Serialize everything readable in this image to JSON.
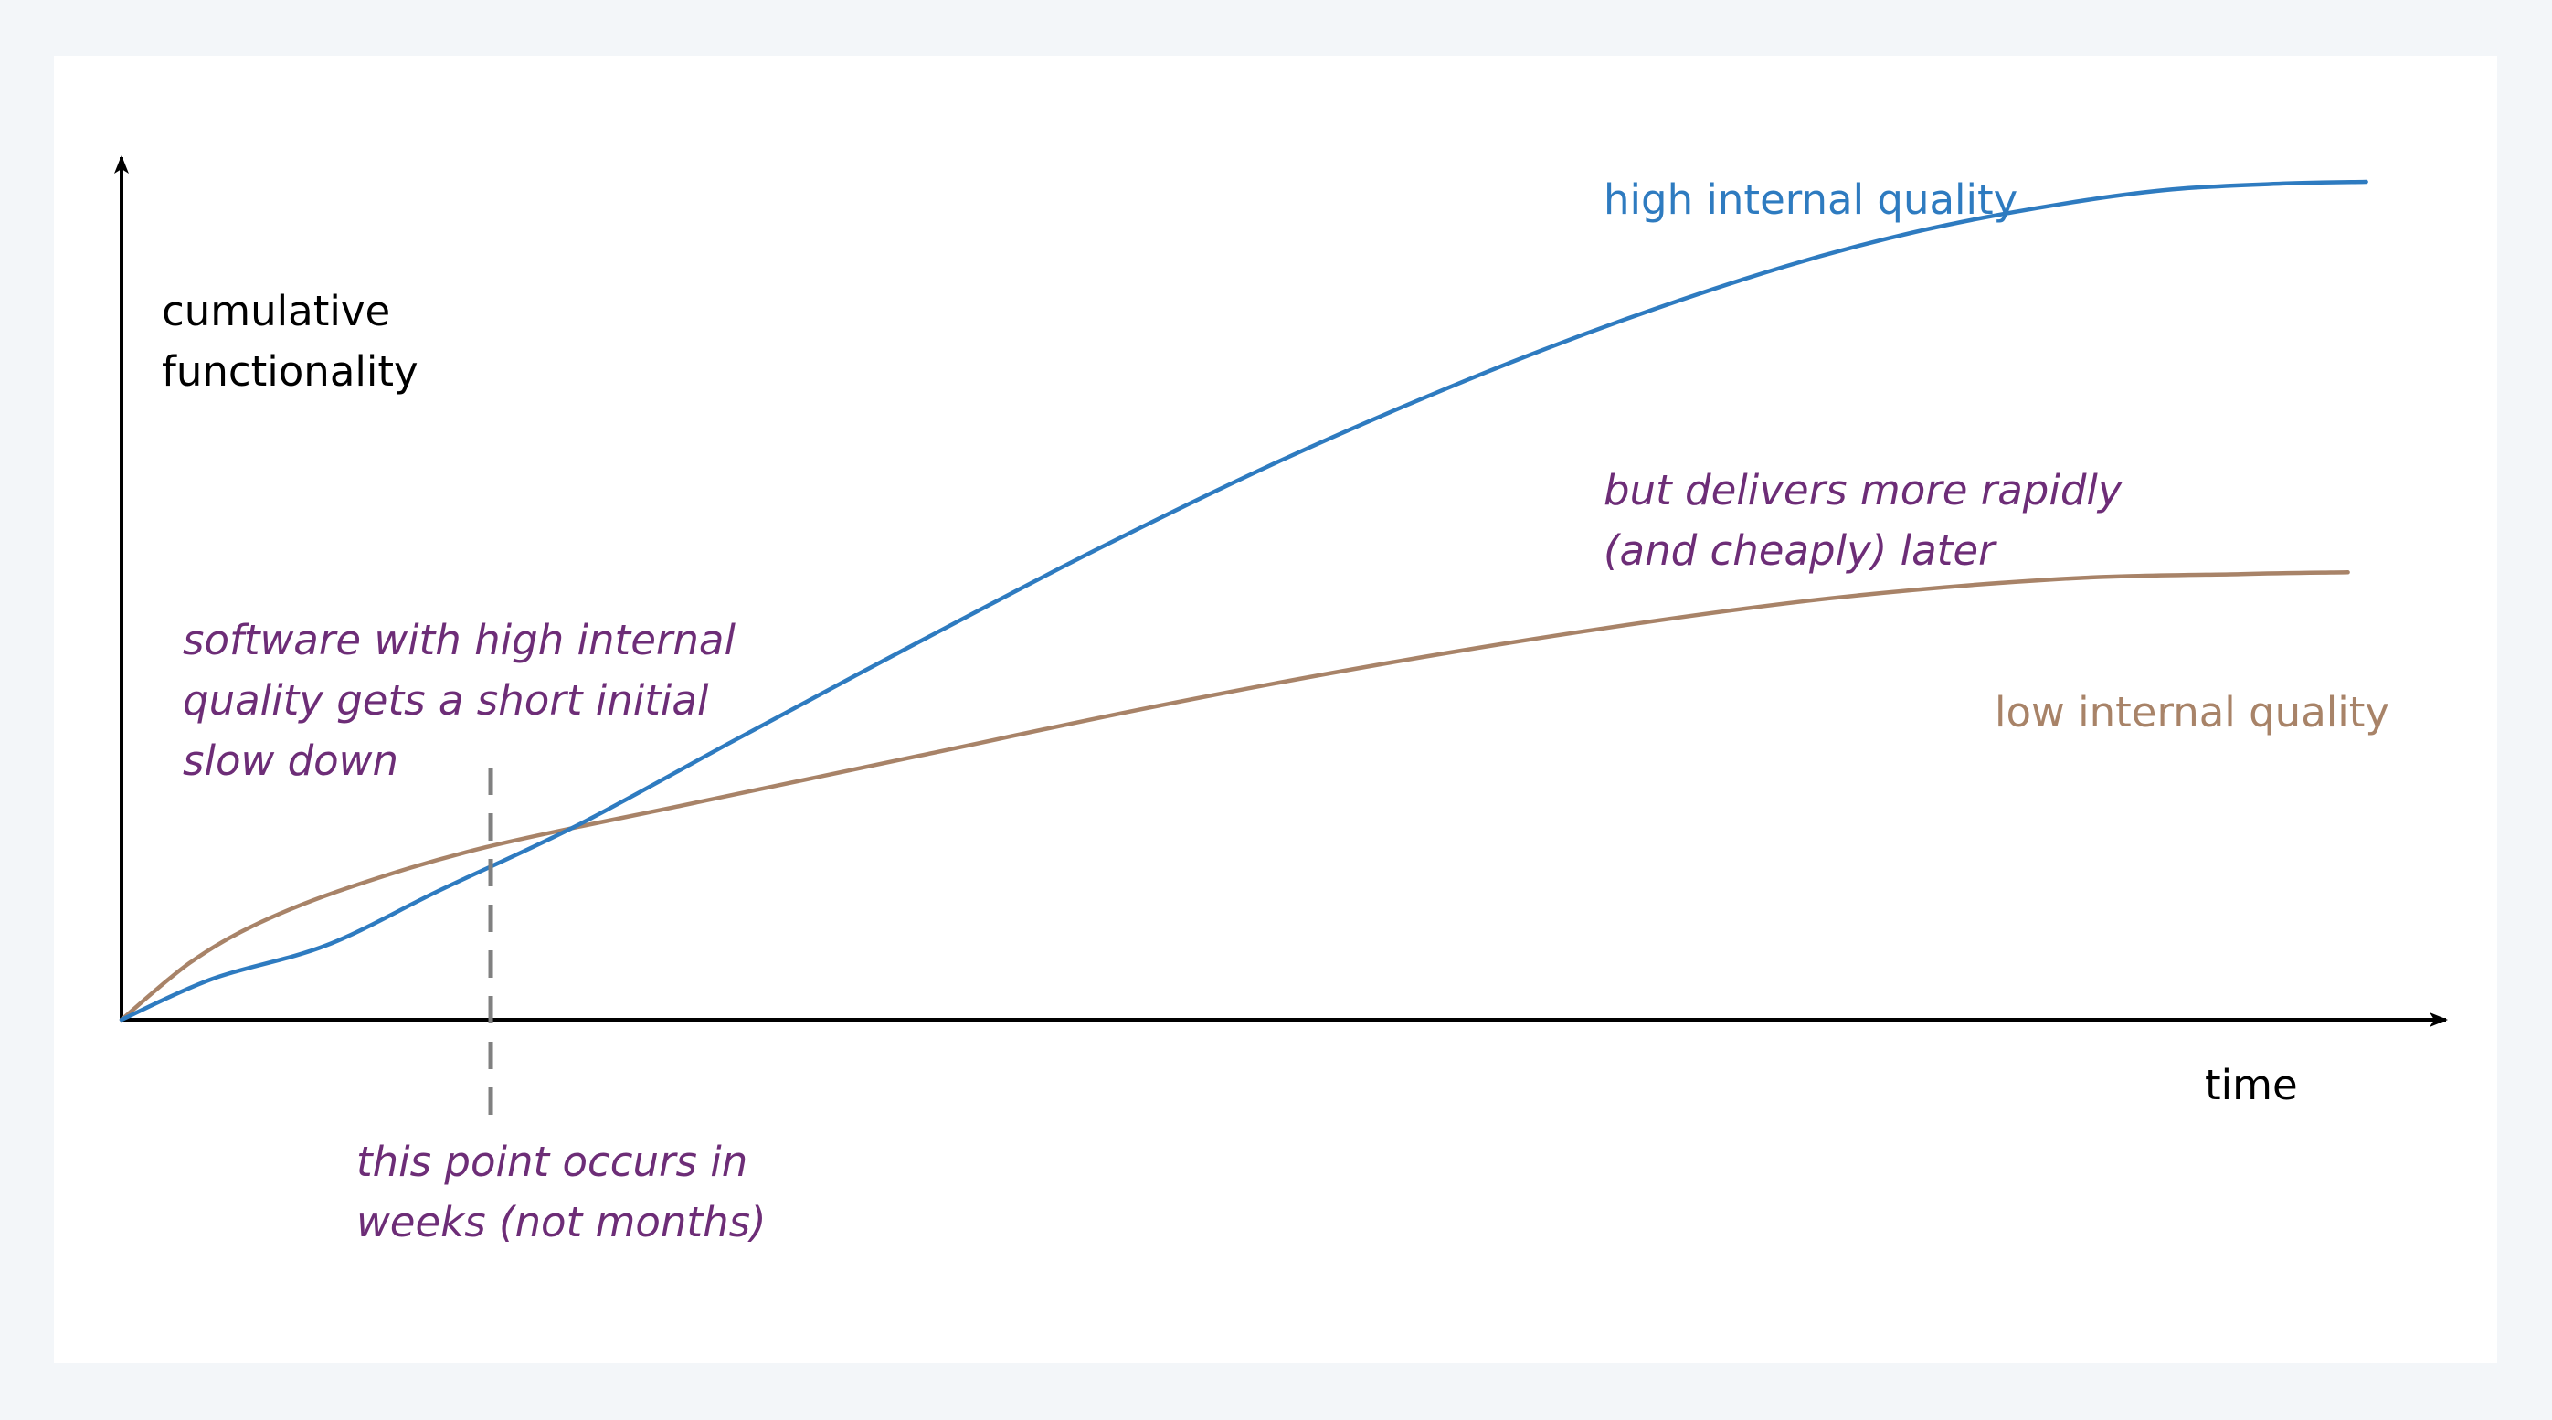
{
  "chart_data": {
    "type": "line",
    "title": "",
    "xlabel": "time",
    "ylabel_lines": [
      "cumulative",
      "functionality"
    ],
    "axis_ticks": false,
    "grid": false,
    "xlim": [
      0,
      100
    ],
    "ylim": [
      0,
      100
    ],
    "series": [
      {
        "name": "high internal quality",
        "color": "#2e7bc0",
        "x": [
          0,
          4,
          9,
          14,
          20,
          27,
          35,
          43,
          51,
          59,
          66,
          73,
          79,
          85,
          90,
          95,
          98.5
        ],
        "y": [
          0,
          4.9,
          8.9,
          15.5,
          23.2,
          33.5,
          45.1,
          56.4,
          66.9,
          76.3,
          83.6,
          89.9,
          94.2,
          97.3,
          99.1,
          99.8,
          100
        ]
      },
      {
        "name": "low internal quality",
        "color": "#a88368",
        "x": [
          0,
          3,
          6,
          10,
          16,
          25,
          35,
          45,
          55,
          65,
          75,
          85,
          93,
          97.7
        ],
        "y": [
          0,
          6.8,
          11.5,
          15.8,
          20.6,
          25.8,
          31.5,
          37.2,
          42.3,
          46.7,
          50.3,
          52.6,
          53.2,
          53.4
        ]
      }
    ],
    "annotations": [
      {
        "key": "crossover",
        "lines": [
          "software with high internal",
          "quality gets a short initial",
          "slow down"
        ]
      },
      {
        "key": "later",
        "lines": [
          "but delivers more rapidly",
          "(and cheaply) later"
        ]
      },
      {
        "key": "point",
        "lines": [
          "this point occurs in",
          "weeks (not months)"
        ]
      }
    ],
    "marker_x": 16.2,
    "colors": {
      "axis": "#000000",
      "annotation": "#6d2d77",
      "marker": "#808080"
    }
  }
}
